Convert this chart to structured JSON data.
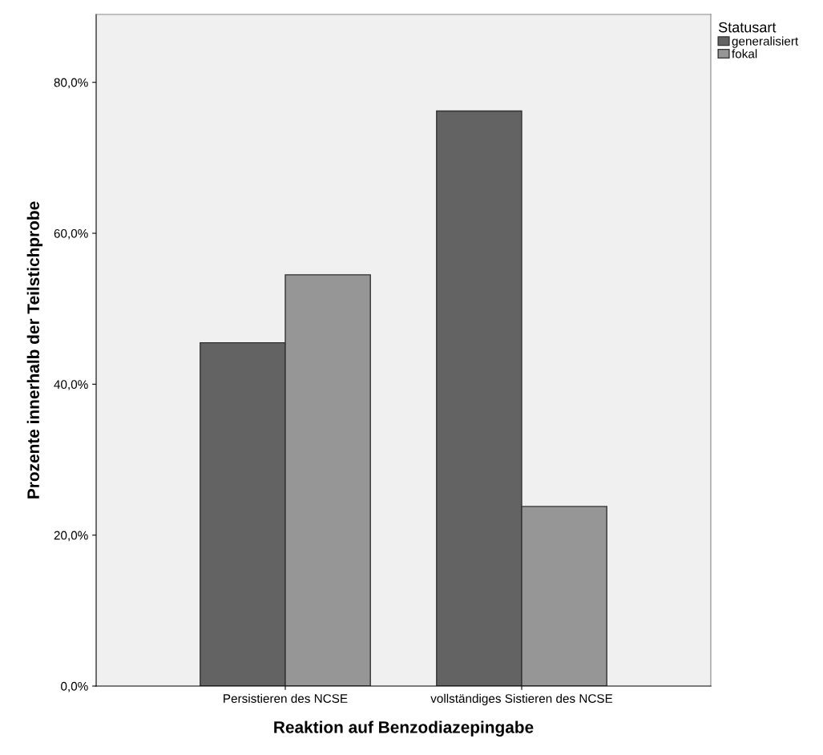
{
  "chart_data": {
    "type": "bar",
    "xlabel": "Reaktion auf Benzodiazepingabe",
    "ylabel": "Prozente innerhalb der Teilstichprobe",
    "legend_title": "Statusart",
    "categories": [
      "Persistieren des NCSE",
      "vollständiges Sistieren des NCSE"
    ],
    "series": [
      {
        "name": "generalisiert",
        "color": "#636363",
        "values": [
          45.5,
          76.2
        ]
      },
      {
        "name": "fokal",
        "color": "#969696",
        "values": [
          54.5,
          23.8
        ]
      }
    ],
    "ylim": [
      0,
      89
    ],
    "yticks": [
      {
        "value": 0,
        "label": "0,0%"
      },
      {
        "value": 20,
        "label": "20,0%"
      },
      {
        "value": 40,
        "label": "40,0%"
      },
      {
        "value": 60,
        "label": "60,0%"
      },
      {
        "value": 80,
        "label": "80,0%"
      }
    ],
    "grid": false,
    "legend": "top right"
  }
}
